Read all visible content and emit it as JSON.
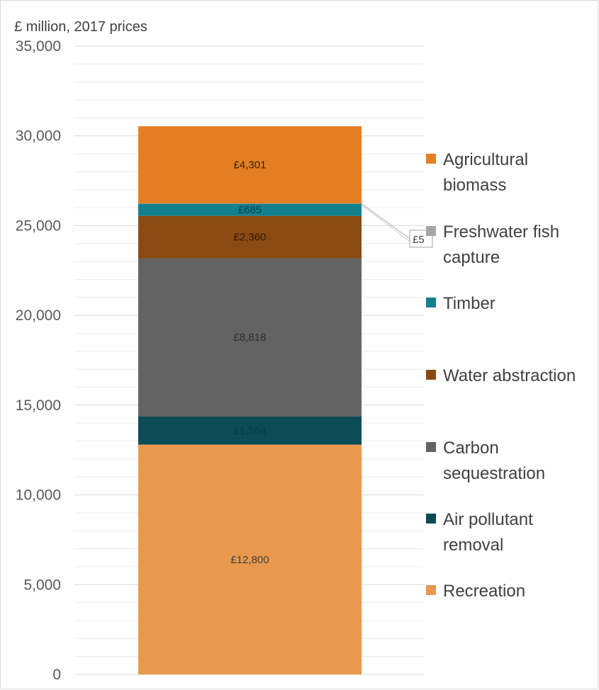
{
  "chart_data": {
    "type": "bar",
    "stacked": true,
    "ylabel": "£ million, 2017 prices",
    "ylim": [
      0,
      35000
    ],
    "y_ticks": [
      0,
      5000,
      10000,
      15000,
      20000,
      25000,
      30000,
      35000
    ],
    "y_tick_labels": [
      "0",
      "5,000",
      "10,000",
      "15,000",
      "20,000",
      "25,000",
      "30,000",
      "35,000"
    ],
    "grid": true,
    "legend_position": "right",
    "series": [
      {
        "name": "Recreation",
        "value": 12800,
        "label": "£12,800",
        "color": "#E8994E",
        "label_color": "#404040"
      },
      {
        "name": "Air pollutant removal",
        "value": 1564,
        "label": "£1,564",
        "color": "#0B4C57",
        "label_color": "#0a3a42"
      },
      {
        "name": "Carbon sequestration",
        "value": 8818,
        "label": "£8,818",
        "color": "#636363",
        "label_color": "#303030"
      },
      {
        "name": "Water abstraction",
        "value": 2360,
        "label": "£2,360",
        "color": "#8B4A12",
        "label_color": "#2e1a08"
      },
      {
        "name": "Timber",
        "value": 685,
        "label": "£685",
        "color": "#12808F",
        "label_color": "#0c3f47"
      },
      {
        "name": "Freshwater fish capture",
        "value": 5,
        "label": "£5",
        "color": "#A6A6A6",
        "label_color": "#404040"
      },
      {
        "name": "Agricultural biomass",
        "value": 4301,
        "label": "£4,301",
        "color": "#E57E22",
        "label_color": "#3a2008"
      }
    ],
    "legend_order": [
      "Agricultural biomass",
      "Freshwater fish capture",
      "Timber",
      "Water abstraction",
      "Carbon sequestration",
      "Air pollutant removal",
      "Recreation"
    ],
    "legend_text": {
      "Agricultural biomass": [
        "Agricultural",
        "biomass"
      ],
      "Freshwater fish capture": [
        "Freshwater fish",
        "capture"
      ],
      "Timber": [
        "Timber"
      ],
      "Water abstraction": [
        "Water abstraction"
      ],
      "Carbon sequestration": [
        "Carbon",
        "sequestration"
      ],
      "Air pollutant removal": [
        "Air pollutant",
        "removal"
      ],
      "Recreation": [
        "Recreation"
      ]
    }
  }
}
